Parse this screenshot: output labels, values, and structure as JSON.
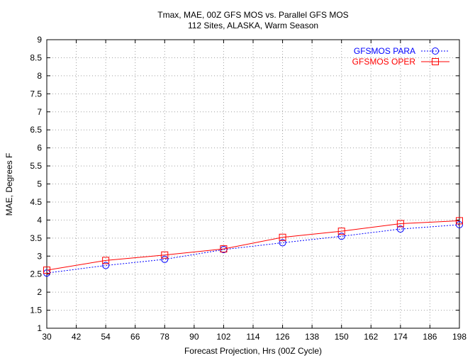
{
  "chart_data": {
    "type": "line",
    "title": "Tmax, MAE, 00Z GFS MOS vs. Parallel GFS MOS",
    "subtitle": "112 Sites, ALASKA, Warm Season",
    "xlabel": "Forecast Projection, Hrs (00Z Cycle)",
    "ylabel": "MAE, Degrees F",
    "xlim": [
      30,
      198
    ],
    "ylim": [
      1,
      9
    ],
    "x_ticks": [
      30,
      42,
      54,
      66,
      78,
      90,
      102,
      114,
      126,
      138,
      150,
      162,
      174,
      186,
      198
    ],
    "y_ticks": [
      1,
      1.5,
      2,
      2.5,
      3,
      3.5,
      4,
      4.5,
      5,
      5.5,
      6,
      6.5,
      7,
      7.5,
      8,
      8.5,
      9
    ],
    "grid": true,
    "legend_position": "top-right",
    "x": [
      30,
      54,
      78,
      102,
      126,
      150,
      174,
      198
    ],
    "series": [
      {
        "name": "GFSMOS PARA",
        "color": "#0000ff",
        "marker": "circle",
        "line_style": "dotted",
        "values": [
          2.53,
          2.74,
          2.91,
          3.18,
          3.37,
          3.55,
          3.75,
          3.87
        ]
      },
      {
        "name": "GFSMOS OPER",
        "color": "#ff0000",
        "marker": "square",
        "line_style": "solid",
        "values": [
          2.61,
          2.88,
          3.03,
          3.2,
          3.52,
          3.69,
          3.9,
          3.98
        ]
      }
    ]
  }
}
